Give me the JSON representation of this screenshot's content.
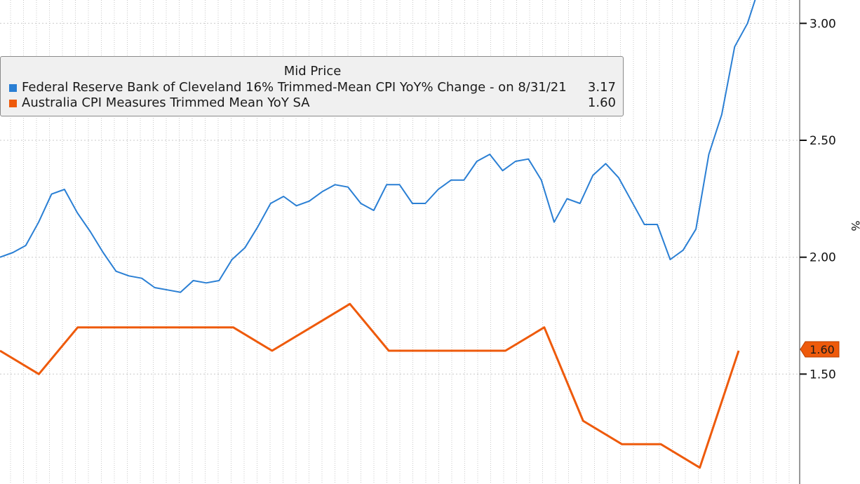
{
  "legend": {
    "title": "Mid Price",
    "series": [
      {
        "label": "Federal Reserve Bank of Cleveland 16% Trimmed-Mean CPI YoY% Change -  on 8/31/21",
        "value": "3.17",
        "color": "#2a7fd4"
      },
      {
        "label": "Australia CPI Measures Trimmed Mean YoY SA",
        "value": "1.60",
        "color": "#ee5a0b"
      }
    ]
  },
  "last_value_badge": "1.60",
  "chart_data": {
    "type": "line",
    "ylabel": "%",
    "ylim": [
      1.03,
      3.1
    ],
    "y_ticks": [
      "3.00",
      "2.50",
      "2.00",
      "1.50",
      "1.00"
    ],
    "grid": true,
    "legend_position": "top-left",
    "series": [
      {
        "name": "Federal Reserve Bank of Cleveland 16% Trimmed-Mean CPI YoY% Change",
        "color": "#2a7fd4",
        "values": [
          2.0,
          2.02,
          2.05,
          2.15,
          2.27,
          2.29,
          2.19,
          2.11,
          2.02,
          1.94,
          1.92,
          1.91,
          1.87,
          1.86,
          1.85,
          1.9,
          1.89,
          1.9,
          1.99,
          2.04,
          2.13,
          2.23,
          2.26,
          2.22,
          2.24,
          2.28,
          2.31,
          2.3,
          2.23,
          2.2,
          2.31,
          2.31,
          2.23,
          2.23,
          2.29,
          2.33,
          2.33,
          2.41,
          2.44,
          2.37,
          2.41,
          2.42,
          2.33,
          2.15,
          2.25,
          2.23,
          2.35,
          2.4,
          2.34,
          2.24,
          2.14,
          2.14,
          1.99,
          2.03,
          2.12,
          2.44,
          2.61,
          2.9,
          3.0,
          3.17
        ]
      },
      {
        "name": "Australia CPI Measures Trimmed Mean YoY SA",
        "color": "#ee5a0b",
        "values": [
          1.6,
          1.5,
          1.7,
          1.7,
          1.7,
          1.7,
          1.7,
          1.6,
          1.7,
          1.8,
          1.6,
          1.6,
          1.6,
          1.6,
          1.7,
          1.3,
          1.2,
          1.2,
          1.1,
          1.6
        ]
      }
    ]
  }
}
